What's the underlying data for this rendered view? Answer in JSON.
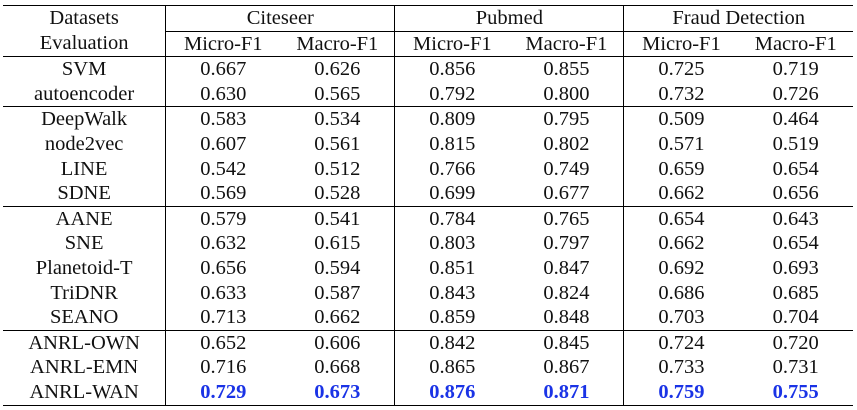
{
  "header": {
    "datasets_label": "Datasets",
    "evaluation_label": "Evaluation",
    "datasets": [
      "Citeseer",
      "Pubmed",
      "Fraud Detection"
    ],
    "metrics": [
      "Micro-F1",
      "Macro-F1",
      "Micro-F1",
      "Macro-F1",
      "Micro-F1",
      "Macro-F1"
    ]
  },
  "groups": [
    {
      "rows": [
        {
          "method": "SVM",
          "values": [
            "0.667",
            "0.626",
            "0.856",
            "0.855",
            "0.725",
            "0.719"
          ]
        },
        {
          "method": "autoencoder",
          "values": [
            "0.630",
            "0.565",
            "0.792",
            "0.800",
            "0.732",
            "0.726"
          ]
        }
      ]
    },
    {
      "rows": [
        {
          "method": "DeepWalk",
          "values": [
            "0.583",
            "0.534",
            "0.809",
            "0.795",
            "0.509",
            "0.464"
          ]
        },
        {
          "method": "node2vec",
          "values": [
            "0.607",
            "0.561",
            "0.815",
            "0.802",
            "0.571",
            "0.519"
          ]
        },
        {
          "method": "LINE",
          "values": [
            "0.542",
            "0.512",
            "0.766",
            "0.749",
            "0.659",
            "0.654"
          ]
        },
        {
          "method": "SDNE",
          "values": [
            "0.569",
            "0.528",
            "0.699",
            "0.677",
            "0.662",
            "0.656"
          ]
        }
      ]
    },
    {
      "rows": [
        {
          "method": "AANE",
          "values": [
            "0.579",
            "0.541",
            "0.784",
            "0.765",
            "0.654",
            "0.643"
          ]
        },
        {
          "method": "SNE",
          "values": [
            "0.632",
            "0.615",
            "0.803",
            "0.797",
            "0.662",
            "0.654"
          ]
        },
        {
          "method": "Planetoid-T",
          "values": [
            "0.656",
            "0.594",
            "0.851",
            "0.847",
            "0.692",
            "0.693"
          ]
        },
        {
          "method": "TriDNR",
          "values": [
            "0.633",
            "0.587",
            "0.843",
            "0.824",
            "0.686",
            "0.685"
          ]
        },
        {
          "method": "SEANO",
          "values": [
            "0.713",
            "0.662",
            "0.859",
            "0.848",
            "0.703",
            "0.704"
          ]
        }
      ]
    },
    {
      "rows": [
        {
          "method": "ANRL-OWN",
          "values": [
            "0.652",
            "0.606",
            "0.842",
            "0.845",
            "0.724",
            "0.720"
          ]
        },
        {
          "method": "ANRL-EMN",
          "values": [
            "0.716",
            "0.668",
            "0.865",
            "0.867",
            "0.733",
            "0.731"
          ]
        },
        {
          "method": "ANRL-WAN",
          "values": [
            "0.729",
            "0.673",
            "0.876",
            "0.871",
            "0.759",
            "0.755"
          ],
          "highlight": true
        }
      ]
    }
  ],
  "highlight_color": "#1a33e6"
}
